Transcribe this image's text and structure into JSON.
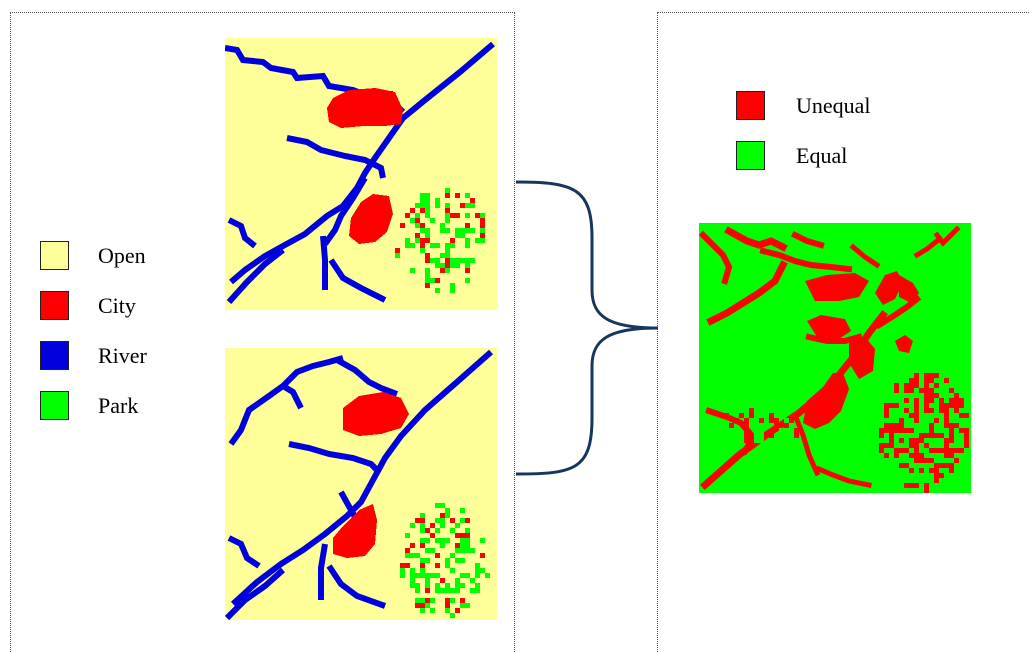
{
  "colors": {
    "open": "#FFFF99",
    "city": "#FF0000",
    "river": "#0000DD",
    "park": "#00FF00",
    "unequal": "#FF0000",
    "equal": "#00FF00",
    "brace": "#17365D"
  },
  "land_legend": [
    {
      "label": "Open",
      "color_key": "open"
    },
    {
      "label": "City",
      "color_key": "city"
    },
    {
      "label": "River",
      "color_key": "river"
    },
    {
      "label": "Park",
      "color_key": "park"
    }
  ],
  "diff_legend": [
    {
      "label": "Unequal",
      "color_key": "unequal"
    },
    {
      "label": "Equal",
      "color_key": "equal"
    }
  ]
}
